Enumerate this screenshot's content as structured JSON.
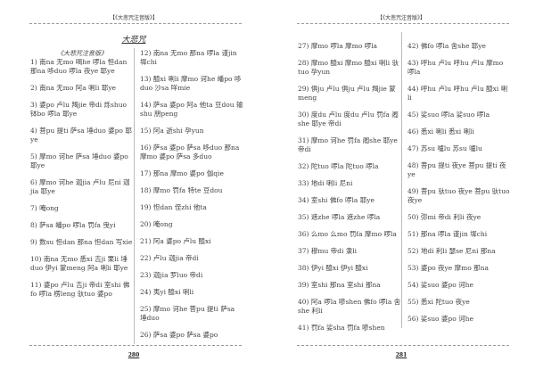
{
  "left_page": {
    "header": "【《大悲咒注音版》】",
    "title": "大悲咒",
    "subtitle": "《大悲咒注音版》",
    "page_number": "280",
    "col1": [
      "1) 南na 无mo 喝he 啰la 怛dan 那na 哆duo 啰la 夜ye 耶ye",
      "2) 南na 无mo 阿a 唎li 耶ye",
      "3) 婆po 卢lu 羯jie 帝di 烁shuo 钵bo 啰la 耶ye",
      "4) 菩pu 提ti 萨sa 埵duo 婆po 耶ye",
      "5) 摩mo 诃he 萨sa 埵duo 婆po 耶ye",
      "6) 摩mo 诃he 迦jia 卢lu 尼ni 迦jia 耶ye",
      "7) 唵ong",
      "8) 萨sa 皤po 啰la 罚fa 曳yi",
      "9) 数su 怛dan 那na 怛dan 写xie",
      "10) 南na 无mo 悉xi 吉ji 栗li 埵duo 伊yi 蒙meng 阿a 唎li 耶ye",
      "11) 婆po 卢lu 吉ji 帝di 室shi 佛fo 啰la 楞leng 驮tuo 婆po"
    ],
    "col2": [
      "12) 南na 无mo 那na 啰la 谨jin 墀chi",
      "13) 醯xi 唎li 摩mo 诃he 皤po 哆duo 沙sa 咩mie",
      "14) 萨sa 婆po 阿a 他ta 豆dou 输shu 朋peng",
      "15) 阿a 逝shi 孕yun",
      "16) 萨sa 婆po 萨sa 哆duo 那na 摩mo 婆po 萨sa 多duo",
      "17) 那na 摩mo 婆po 伽qie",
      "18) 摩mo 罚fa 特te 豆dou",
      "19) 怛dan 侄zhi 他ta",
      "20) 唵ong",
      "21) 阿a 婆po 卢lu 醯xi",
      "22) 卢lu 迦jia 帝di",
      "23) 迦jia 罗luo 帝di",
      "24) 夷yi 醯xi 唎li",
      "25) 摩mo 诃he 菩pu 提ti 萨sa 埵duo",
      "26) 萨sa 婆po 萨sa 婆po"
    ]
  },
  "right_page": {
    "header": "【《大悲咒注音版》】",
    "page_number": "281",
    "col1": [
      "27) 摩mo 啰la 摩mo 啰la",
      "28) 摩mo 醯xi 摩mo 醯xi 唎li 驮tuo 孕yun",
      "29) 俱ju 卢lu 俱ju 卢lu 羯jie 蒙meng",
      "30) 度du 卢lu 度du 卢lu 罚fa 阇she 耶ye 帝di",
      "31) 摩mo 诃he 罚fa 阇she 耶ye 帝di",
      "32) 陀tuo 啰la 陀tuo 啰la",
      "33) 地di 唎li 尼ni",
      "34) 室shi 佛fo 啰la 耶ye",
      "35) 遮zhe 啰la 遮zhe 啰la",
      "36) 么mo 么mo 罚fa 摩mo 啰la",
      "37) 穆mu 帝di 隶li",
      "38) 伊yi 醯xi 伊yi 醯xi",
      "39) 室shi 那na 室shi 那na",
      "40) 阿a 啰la 嘇shen 佛fo 啰la 舍she 利li",
      "41) 罚fa 娑sha 罚fa 嘇shen"
    ],
    "col2": [
      "42) 佛fo 啰la 舍she 耶ye",
      "43) 呼hu 卢lu 呼hu 卢lu 摩mo 啰la",
      "44) 呼hu 卢lu 呼hu 卢lu 醯xi 唎li",
      "45) 娑suo 啰la 娑suo 啰la",
      "46) 悉xi 唎li 悉xi 唎li",
      "47) 苏su 嚧lu 苏su 嚧lu",
      "48) 菩pu 提ti 夜ye 菩pu 提ti 夜ye",
      "49) 菩pu 驮tuo 夜ye 菩pu 驮tuo 夜ye",
      "50) 弥mi 帝di 利li 夜ye",
      "51) 那na 啰la 谨jin 墀chi",
      "52) 地di 利li 瑟se 尼ni 那na",
      "53) 婆po 夜ye 摩mo 那na",
      "54) 娑suo 婆po 诃he",
      "55) 悉xi 陀tuo 夜ye",
      "56) 娑suo 婆po 诃he"
    ]
  }
}
